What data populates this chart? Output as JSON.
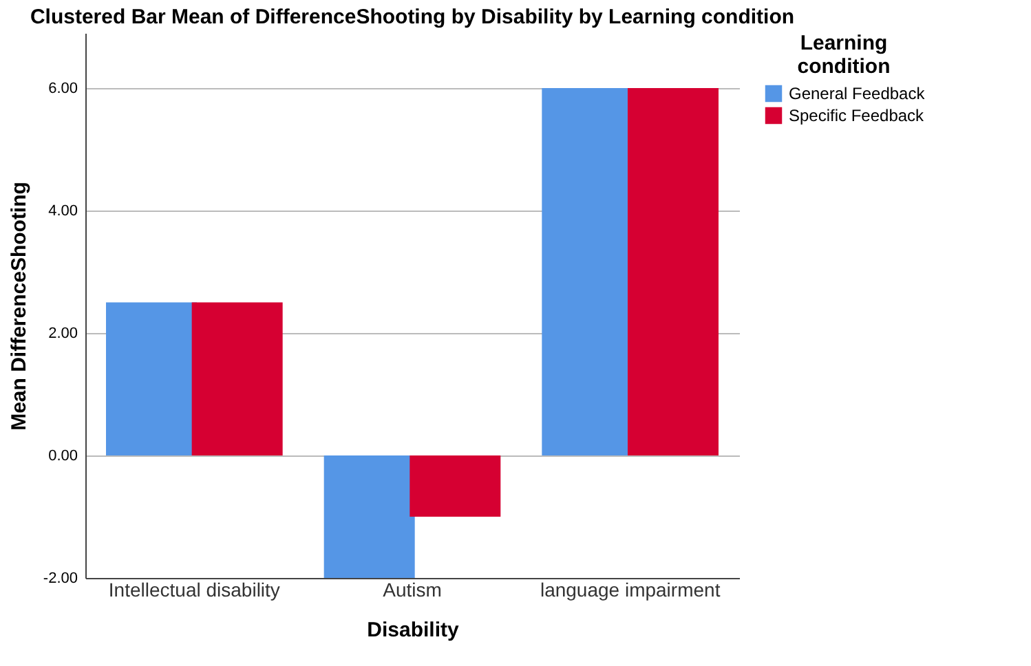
{
  "chart_data": {
    "type": "bar",
    "title": "Clustered Bar Mean of DifferenceShooting by Disability by Learning condition",
    "xlabel": "Disability",
    "ylabel": "Mean DifferenceShooting",
    "legend_title": "Learning condition",
    "categories": [
      "Intellectual disability",
      "Autism",
      "language impairment"
    ],
    "series": [
      {
        "name": "General Feedback",
        "color": "#5596e6",
        "values": [
          2.5,
          -2,
          6
        ]
      },
      {
        "name": "Specific Feedback",
        "color": "#d60032",
        "values": [
          2.5,
          -1,
          6
        ]
      }
    ],
    "ylim": [
      -2,
      6.9
    ],
    "yticks": [
      {
        "value": -2,
        "label": "-2.00"
      },
      {
        "value": 0,
        "label": "0.00"
      },
      {
        "value": 2,
        "label": "2.00"
      },
      {
        "value": 4,
        "label": "4.00"
      },
      {
        "value": 6,
        "label": "6.00"
      }
    ],
    "grid": "y",
    "legend": "top right"
  }
}
